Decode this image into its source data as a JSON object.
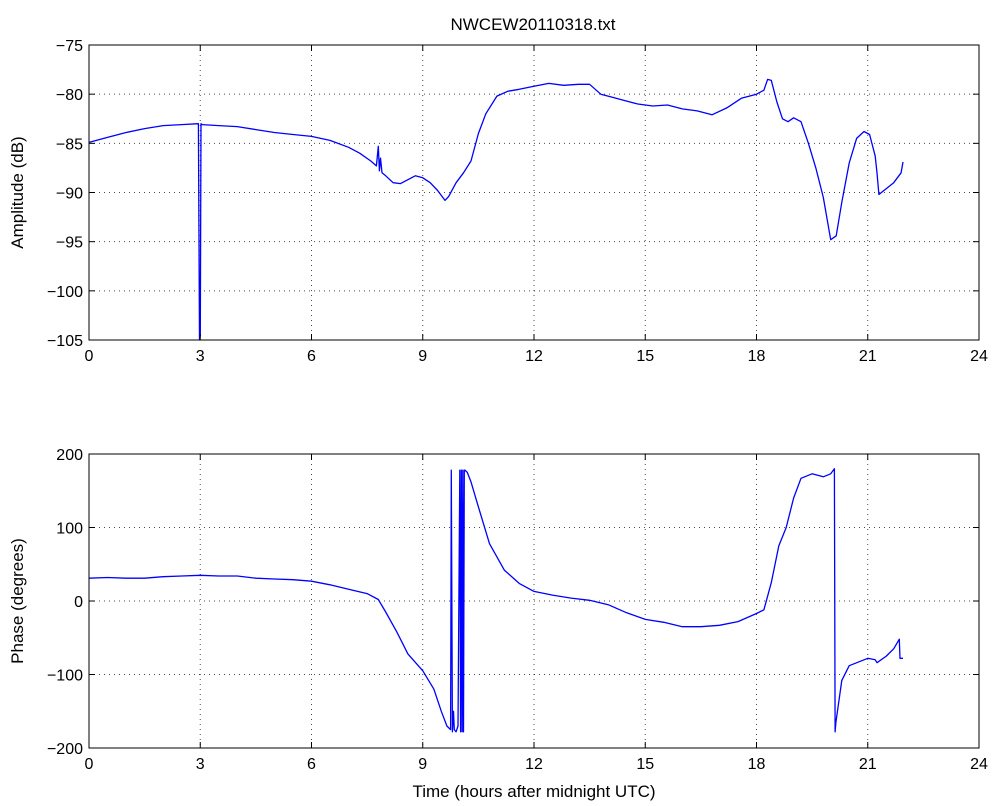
{
  "figure": {
    "title": "NWCEW20110318.txt"
  },
  "chart_data": [
    {
      "type": "line",
      "title": "NWCEW20110318.txt",
      "xlabel": "",
      "ylabel": "Amplitude (dB)",
      "xlim": [
        0,
        24
      ],
      "ylim": [
        -105,
        -75
      ],
      "xticks": [
        0,
        3,
        6,
        9,
        12,
        15,
        18,
        21,
        24
      ],
      "yticks": [
        -105,
        -100,
        -95,
        -90,
        -85,
        -80,
        -75
      ],
      "grid": true,
      "color": "#0000ff",
      "series": [
        {
          "x": [
            0,
            0.5,
            1,
            1.5,
            2,
            2.5,
            2.95,
            2.98,
            3.0,
            3.02,
            3.05,
            3.5,
            4,
            4.5,
            5,
            5.5,
            6,
            6.5,
            7,
            7.3,
            7.6,
            7.75,
            7.8,
            7.83,
            7.86,
            7.9,
            8.0,
            8.2,
            8.4,
            8.6,
            8.8,
            9.0,
            9.2,
            9.4,
            9.6,
            9.7,
            9.9,
            10.1,
            10.3,
            10.5,
            10.7,
            11.0,
            11.3,
            11.6,
            12.0,
            12.4,
            12.8,
            13.2,
            13.5,
            13.8,
            14.1,
            14.4,
            14.8,
            15.2,
            15.6,
            16.0,
            16.4,
            16.8,
            17.2,
            17.6,
            18.0,
            18.2,
            18.3,
            18.4,
            18.55,
            18.7,
            18.85,
            19.0,
            19.2,
            19.4,
            19.6,
            19.8,
            20.0,
            20.15,
            20.3,
            20.5,
            20.7,
            20.9,
            21.05,
            21.2,
            21.25,
            21.3,
            21.5,
            21.7,
            21.9,
            21.95
          ],
          "y": [
            -84.9,
            -84.4,
            -83.9,
            -83.5,
            -83.2,
            -83.1,
            -83.0,
            -105.0,
            -104.5,
            -83.0,
            -83.1,
            -83.2,
            -83.3,
            -83.6,
            -83.9,
            -84.1,
            -84.3,
            -84.7,
            -85.4,
            -86.0,
            -86.8,
            -87.3,
            -85.3,
            -87.8,
            -86.5,
            -88.0,
            -88.3,
            -89.0,
            -89.1,
            -88.7,
            -88.3,
            -88.5,
            -89.0,
            -89.8,
            -90.8,
            -90.4,
            -89.0,
            -88.0,
            -86.8,
            -84.0,
            -82.0,
            -80.2,
            -79.7,
            -79.5,
            -79.2,
            -78.9,
            -79.1,
            -79.0,
            -79.0,
            -80.0,
            -80.3,
            -80.6,
            -81.0,
            -81.2,
            -81.1,
            -81.5,
            -81.7,
            -82.1,
            -81.4,
            -80.4,
            -80.0,
            -79.6,
            -78.5,
            -78.6,
            -80.8,
            -82.5,
            -82.8,
            -82.4,
            -82.8,
            -85.0,
            -87.5,
            -90.5,
            -94.8,
            -94.4,
            -91.0,
            -87.0,
            -84.5,
            -83.8,
            -84.1,
            -86.3,
            -88.0,
            -90.2,
            -89.6,
            -89.0,
            -88.0,
            -86.9
          ]
        }
      ]
    },
    {
      "type": "line",
      "title": "",
      "xlabel": "Time (hours after midnight UTC)",
      "ylabel": "Phase (degrees)",
      "xlim": [
        0,
        24
      ],
      "ylim": [
        -200,
        200
      ],
      "xticks": [
        0,
        3,
        6,
        9,
        12,
        15,
        18,
        21,
        24
      ],
      "yticks": [
        -200,
        -100,
        0,
        100,
        200
      ],
      "grid": true,
      "color": "#0000ff",
      "series": [
        {
          "x": [
            0,
            0.5,
            1,
            1.5,
            2,
            2.5,
            3,
            3.5,
            4,
            4.5,
            5,
            5.5,
            6,
            6.5,
            7,
            7.5,
            7.8,
            8.0,
            8.3,
            8.6,
            9.0,
            9.3,
            9.5,
            9.65,
            9.75,
            9.77,
            9.8,
            9.83,
            9.85,
            9.9,
            9.95,
            10.0,
            10.02,
            10.04,
            10.06,
            10.08,
            10.1,
            10.12,
            10.14,
            10.2,
            10.3,
            10.5,
            10.8,
            11.2,
            11.6,
            12.0,
            12.5,
            13.0,
            13.5,
            14.0,
            14.5,
            15.0,
            15.5,
            16.0,
            16.5,
            17.0,
            17.5,
            18.0,
            18.2,
            18.4,
            18.6,
            18.8,
            19.0,
            19.2,
            19.5,
            19.8,
            20.0,
            20.1,
            20.12,
            20.14,
            20.3,
            20.5,
            20.8,
            21.0,
            21.2,
            21.25,
            21.5,
            21.7,
            21.85,
            21.87,
            21.95
          ],
          "y": [
            31,
            32,
            31,
            31,
            33,
            34,
            35,
            34,
            34,
            31,
            30,
            29,
            27,
            22,
            16,
            10,
            2,
            -15,
            -42,
            -72,
            -95,
            -120,
            -150,
            -170,
            -175,
            178,
            -178,
            -150,
            -175,
            -178,
            -170,
            178,
            -178,
            178,
            -178,
            178,
            -178,
            178,
            178,
            175,
            162,
            128,
            78,
            42,
            24,
            13,
            8,
            4,
            1,
            -5,
            -16,
            -25,
            -29,
            -35,
            -35,
            -33,
            -28,
            -17,
            -12,
            25,
            75,
            100,
            140,
            167,
            173,
            169,
            173,
            180,
            -178,
            -165,
            -108,
            -88,
            -82,
            -78,
            -80,
            -84,
            -75,
            -65,
            -52,
            -78,
            -78
          ]
        }
      ]
    }
  ]
}
